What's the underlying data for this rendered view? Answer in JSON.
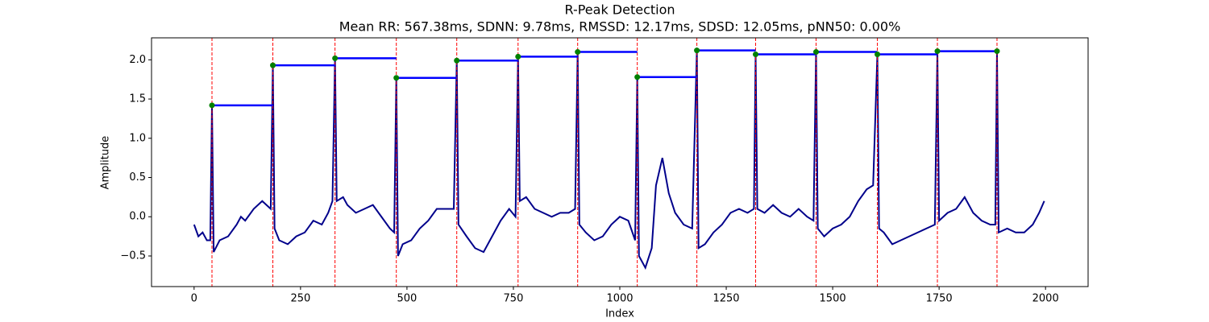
{
  "chart_data": {
    "type": "line",
    "title": "R-Peak Detection",
    "subtitle": "Mean RR: 567.38ms, SDNN: 9.78ms, RMSSD: 12.17ms, SDSD: 12.05ms, pNN50: 0.00%",
    "xlabel": "Index",
    "ylabel": "Amplitude",
    "xlim": [
      -100,
      2100
    ],
    "ylim": [
      -0.89,
      2.28
    ],
    "xticks": [
      0,
      250,
      500,
      750,
      1000,
      1250,
      1500,
      1750,
      2000
    ],
    "yticks": [
      {
        "value": -0.5,
        "label": "−0.5"
      },
      {
        "value": 0,
        "label": "0.0"
      },
      0.5,
      {
        "value": 1,
        "label": "1.0"
      },
      1.5,
      {
        "value": 2,
        "label": "2.0"
      }
    ],
    "line_color": "#00008b",
    "peak_color": "green",
    "vline_color": "red",
    "rr_color": "blue",
    "x": [
      0,
      10,
      20,
      30,
      38,
      42,
      46,
      60,
      80,
      100,
      110,
      120,
      140,
      160,
      170,
      180,
      185,
      189,
      200,
      220,
      240,
      260,
      280,
      300,
      315,
      325,
      331,
      335,
      350,
      360,
      380,
      400,
      420,
      440,
      460,
      470,
      475,
      479,
      490,
      510,
      530,
      550,
      570,
      590,
      610,
      617,
      621,
      640,
      660,
      680,
      700,
      720,
      740,
      755,
      761,
      765,
      780,
      800,
      820,
      840,
      860,
      880,
      895,
      901,
      905,
      920,
      940,
      960,
      980,
      1000,
      1020,
      1036,
      1041,
      1045,
      1060,
      1075,
      1085,
      1100,
      1115,
      1130,
      1150,
      1170,
      1181,
      1185,
      1200,
      1220,
      1240,
      1260,
      1280,
      1300,
      1315,
      1319,
      1323,
      1340,
      1360,
      1380,
      1400,
      1420,
      1440,
      1455,
      1461,
      1465,
      1480,
      1500,
      1520,
      1540,
      1560,
      1580,
      1595,
      1605,
      1609,
      1620,
      1640,
      1660,
      1680,
      1700,
      1720,
      1740,
      1746,
      1750,
      1770,
      1790,
      1810,
      1830,
      1850,
      1870,
      1882,
      1886,
      1890,
      1910,
      1930,
      1950,
      1970,
      1985,
      1997
    ],
    "values": [
      -0.1,
      -0.25,
      -0.2,
      -0.3,
      -0.3,
      1.42,
      -0.45,
      -0.3,
      -0.25,
      -0.1,
      0.0,
      -0.05,
      0.1,
      0.2,
      0.15,
      0.1,
      1.93,
      -0.15,
      -0.3,
      -0.35,
      -0.25,
      -0.2,
      -0.05,
      -0.1,
      0.05,
      0.2,
      2.02,
      0.2,
      0.25,
      0.15,
      0.05,
      0.1,
      0.15,
      0.0,
      -0.15,
      -0.2,
      1.77,
      -0.5,
      -0.35,
      -0.3,
      -0.15,
      -0.05,
      0.1,
      0.1,
      0.1,
      1.99,
      -0.1,
      -0.25,
      -0.4,
      -0.45,
      -0.25,
      -0.05,
      0.1,
      0.0,
      2.04,
      0.2,
      0.25,
      0.1,
      0.05,
      0.0,
      0.05,
      0.05,
      0.1,
      2.1,
      -0.1,
      -0.2,
      -0.3,
      -0.25,
      -0.1,
      0.0,
      -0.05,
      -0.3,
      1.78,
      -0.5,
      -0.65,
      -0.4,
      0.4,
      0.75,
      0.3,
      0.05,
      -0.1,
      -0.15,
      2.12,
      -0.4,
      -0.35,
      -0.2,
      -0.1,
      0.05,
      0.1,
      0.05,
      0.1,
      2.07,
      0.1,
      0.05,
      0.15,
      0.05,
      0.0,
      0.1,
      0.0,
      -0.05,
      2.1,
      -0.15,
      -0.25,
      -0.15,
      -0.1,
      0.0,
      0.2,
      0.35,
      0.4,
      2.07,
      -0.15,
      -0.2,
      -0.35,
      -0.3,
      -0.25,
      -0.2,
      -0.15,
      -0.1,
      2.11,
      -0.05,
      0.05,
      0.1,
      0.25,
      0.05,
      -0.05,
      -0.1,
      -0.1,
      2.11,
      -0.2,
      -0.15,
      -0.2,
      -0.2,
      -0.1,
      0.05,
      0.2
    ],
    "peaks": {
      "x": [
        42,
        185,
        331,
        475,
        617,
        761,
        901,
        1041,
        1181,
        1319,
        1461,
        1605,
        1746,
        1886
      ],
      "values": [
        1.42,
        1.93,
        2.02,
        1.77,
        1.99,
        2.04,
        2.1,
        1.78,
        2.12,
        2.07,
        2.1,
        2.07,
        2.11,
        2.11
      ]
    }
  }
}
